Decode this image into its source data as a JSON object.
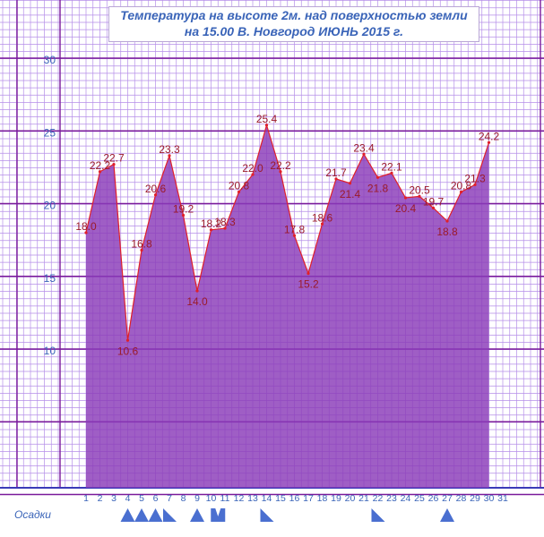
{
  "colors": {
    "grid_minor": "#b58ee8",
    "grid_major": "#7a1a9a",
    "fill": "#8a3ab8",
    "line": "#e0202a",
    "value_label": "#9b1b2a",
    "axis_label": "#3a64b8",
    "precip_marker": "#4a6fd0"
  },
  "title_line1": "Температура на высоте 2м. над поверхностью земли",
  "title_line2": "на 15.00 В. Новгород ИЮНЬ 2015 г.",
  "precip_label": "Осадки",
  "chart_data": {
    "type": "area",
    "title": "Температура на высоте 2м. над поверхностью земли на 15.00 В. Новгород ИЮНЬ 2015 г.",
    "xlabel": "",
    "ylabel": "",
    "x": [
      1,
      2,
      3,
      4,
      5,
      6,
      7,
      8,
      9,
      10,
      11,
      12,
      13,
      14,
      15,
      16,
      17,
      18,
      19,
      20,
      21,
      22,
      23,
      24,
      25,
      26,
      27,
      28,
      29,
      30
    ],
    "x_ticks": [
      "1",
      "2",
      "3",
      "4",
      "5",
      "6",
      "7",
      "8",
      "9",
      "10",
      "11",
      "12",
      "13",
      "14",
      "15",
      "16",
      "17",
      "18",
      "19",
      "20",
      "21",
      "22",
      "23",
      "24",
      "25",
      "26",
      "27",
      "28",
      "29",
      "30",
      "31"
    ],
    "values": [
      18.0,
      22.2,
      22.7,
      10.6,
      16.8,
      20.6,
      23.3,
      19.2,
      14.0,
      18.2,
      18.3,
      20.8,
      22.0,
      25.4,
      22.2,
      17.8,
      15.2,
      18.6,
      21.7,
      21.4,
      23.4,
      21.8,
      22.1,
      20.4,
      20.5,
      19.7,
      18.8,
      20.8,
      21.3,
      24.2
    ],
    "value_labels": [
      "18.0",
      "22.2",
      "22.7",
      "10.6",
      "16.8",
      "20.6",
      "23.3",
      "19.2",
      "14.0",
      "18.2",
      "18.3",
      "20.8",
      "22.0",
      "25.4",
      "22.2",
      "17.8",
      "15.2",
      "18.6",
      "21.7",
      "21.4",
      "23.4",
      "21.8",
      "22.1",
      "20.4",
      "20.5",
      "19.7",
      "18.8",
      "20.8",
      "21.3",
      "24.2"
    ],
    "y_ticks": [
      "10",
      "15",
      "20",
      "25",
      "30"
    ],
    "y_tick_values": [
      10,
      15,
      20,
      25,
      30
    ],
    "ylim": [
      0,
      33.5
    ],
    "xlim": [
      0.5,
      31.5
    ],
    "grid": true,
    "precipitation_markers": [
      {
        "day": 4,
        "shape": "triangle"
      },
      {
        "day": 5,
        "shape": "triangle"
      },
      {
        "day": 6,
        "shape": "triangle"
      },
      {
        "day": 7,
        "shape": "right-triangle"
      },
      {
        "day": 9,
        "shape": "triangle"
      },
      {
        "day": 10.5,
        "shape": "v-notch"
      },
      {
        "day": 14,
        "shape": "right-triangle"
      },
      {
        "day": 22,
        "shape": "right-triangle"
      },
      {
        "day": 27,
        "shape": "triangle"
      }
    ]
  }
}
